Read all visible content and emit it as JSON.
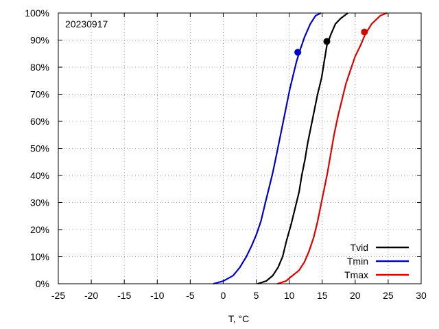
{
  "chart_data": {
    "type": "line",
    "annotation": "20230917",
    "xlabel": "T, °C",
    "ylabel": "",
    "xlim": [
      -25,
      30
    ],
    "ylim": [
      0,
      100
    ],
    "x_ticks": [
      -25,
      -20,
      -15,
      -10,
      -5,
      0,
      5,
      10,
      15,
      20,
      25,
      30
    ],
    "x_tick_labels": [
      "-25",
      "-20",
      "-15",
      "-10",
      "-5",
      "0",
      "5",
      "10",
      "15",
      "20",
      "25",
      "30"
    ],
    "y_ticks": [
      0,
      10,
      20,
      30,
      40,
      50,
      60,
      70,
      80,
      90,
      100
    ],
    "y_tick_labels": [
      "0%",
      "10%",
      "20%",
      "30%",
      "40%",
      "50%",
      "60%",
      "70%",
      "80%",
      "90%",
      "100%"
    ],
    "grid": true,
    "legend_position": "bottom-right",
    "series": [
      {
        "name": "Tvid",
        "color": "#000000",
        "x": [
          5.2,
          6.5,
          7.5,
          8.3,
          9.0,
          9.6,
          10.3,
          10.9,
          11.5,
          11.9,
          12.4,
          12.8,
          13.3,
          13.8,
          14.3,
          14.9,
          15.3,
          15.7,
          16.3,
          17.0,
          17.8,
          18.9
        ],
        "y": [
          0,
          1,
          3,
          6,
          10,
          16,
          22,
          28,
          34,
          40,
          46,
          52,
          58,
          64,
          70,
          76,
          82,
          88,
          92,
          96,
          98,
          100
        ],
        "marker": {
          "x": 15.7,
          "y": 89.5
        }
      },
      {
        "name": "Tmin",
        "color": "#0000cc",
        "x": [
          -1.5,
          0.0,
          1.5,
          2.5,
          3.5,
          4.3,
          5.0,
          5.7,
          6.3,
          6.9,
          7.5,
          8.1,
          8.6,
          9.1,
          9.6,
          10.1,
          10.6,
          11.1,
          11.6,
          12.3,
          13.2,
          14.0,
          14.8
        ],
        "y": [
          0,
          1,
          3,
          6,
          10,
          14,
          18,
          23,
          29,
          35,
          41,
          48,
          54,
          60,
          66,
          72,
          77,
          82,
          86,
          91,
          96,
          99,
          100
        ],
        "marker": {
          "x": 11.3,
          "y": 85.5
        }
      },
      {
        "name": "Tmax",
        "color": "#dd0000",
        "x": [
          8.2,
          9.5,
          10.5,
          11.5,
          12.3,
          13.0,
          13.7,
          14.3,
          14.8,
          15.3,
          15.8,
          16.3,
          16.8,
          17.4,
          18.0,
          18.6,
          19.3,
          20.0,
          20.8,
          21.5,
          22.5,
          23.8,
          24.8
        ],
        "y": [
          0,
          1,
          3,
          5,
          8,
          12,
          17,
          23,
          29,
          35,
          41,
          48,
          55,
          62,
          68,
          74,
          79,
          84,
          88,
          92,
          96,
          99,
          100
        ],
        "marker": {
          "x": 21.4,
          "y": 93.0
        }
      }
    ]
  }
}
